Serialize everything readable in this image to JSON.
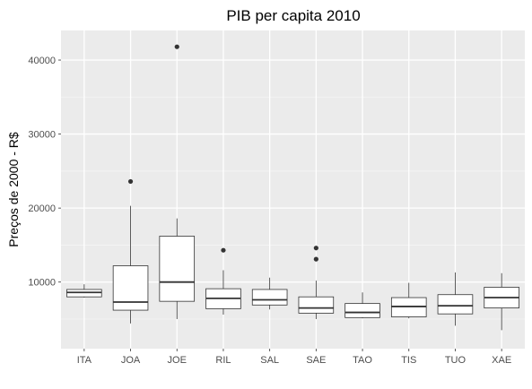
{
  "chart_data": {
    "type": "boxplot",
    "title": "PIB per capita 2010",
    "xlabel": "",
    "ylabel": "Preços de 2000 - R$",
    "ylim": [
      1000,
      44000
    ],
    "yticks": [
      10000,
      20000,
      30000,
      40000
    ],
    "ytick_labels": [
      "10000",
      "20000",
      "30000",
      "40000"
    ],
    "grid": true,
    "categories": [
      "ITA",
      "JOA",
      "JOE",
      "RIL",
      "SAL",
      "SAE",
      "TAO",
      "TIS",
      "TUO",
      "XAE"
    ],
    "boxes": [
      {
        "category": "ITA",
        "min": 7900,
        "q1": 8000,
        "median": 8600,
        "q3": 9000,
        "max": 9700,
        "outliers": []
      },
      {
        "category": "JOA",
        "min": 4400,
        "q1": 6200,
        "median": 7300,
        "q3": 12200,
        "max": 20300,
        "outliers": [
          23600
        ]
      },
      {
        "category": "JOE",
        "min": 5000,
        "q1": 7400,
        "median": 10000,
        "q3": 16200,
        "max": 18600,
        "outliers": [
          41800
        ]
      },
      {
        "category": "RIL",
        "min": 5600,
        "q1": 6400,
        "median": 7800,
        "q3": 9100,
        "max": 11600,
        "outliers": [
          14300
        ]
      },
      {
        "category": "SAL",
        "min": 6300,
        "q1": 6900,
        "median": 7600,
        "q3": 9000,
        "max": 10600,
        "outliers": []
      },
      {
        "category": "SAE",
        "min": 5000,
        "q1": 5800,
        "median": 6500,
        "q3": 8000,
        "max": 10200,
        "outliers": [
          13100,
          14600
        ]
      },
      {
        "category": "TAO",
        "min": 5100,
        "q1": 5200,
        "median": 5900,
        "q3": 7100,
        "max": 8600,
        "outliers": []
      },
      {
        "category": "TIS",
        "min": 5100,
        "q1": 5300,
        "median": 6700,
        "q3": 7900,
        "max": 9900,
        "outliers": []
      },
      {
        "category": "TUO",
        "min": 4100,
        "q1": 5700,
        "median": 6800,
        "q3": 8300,
        "max": 11300,
        "outliers": []
      },
      {
        "category": "XAE",
        "min": 3500,
        "q1": 6500,
        "median": 7900,
        "q3": 9300,
        "max": 11200,
        "outliers": []
      }
    ]
  },
  "colors": {
    "panel_background": "#ebebeb",
    "grid_major": "#ffffff",
    "grid_minor": "#f5f5f5",
    "box_fill": "#ffffff",
    "box_stroke": "#333333",
    "outlier": "#333333"
  }
}
